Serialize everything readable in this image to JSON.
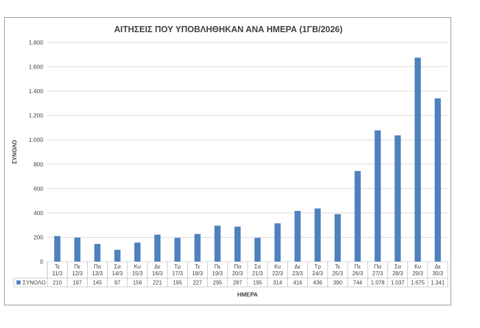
{
  "chart_data": {
    "type": "bar",
    "title": "ΑΙΤΗΣΕΙΣ ΠΟΥ ΥΠΟΒΛΗΘΗΚΑΝ ΑΝΑ ΗΜΕΡΑ (1ΓΒ/2026)",
    "xlabel": "ΗΜΕΡΑ",
    "ylabel": "ΣΥΝΟΛΟ",
    "ylim": [
      0,
      1800
    ],
    "y_ticks": [
      0,
      200,
      400,
      600,
      800,
      1000,
      1200,
      1400,
      1600,
      1800
    ],
    "y_tick_labels": [
      "0",
      "200",
      "400",
      "600",
      "800",
      "1.000",
      "1.200",
      "1.400",
      "1.600",
      "1.800"
    ],
    "grid": true,
    "color": "#4f81bd",
    "categories": [
      {
        "day": "Τε",
        "date": "11/3"
      },
      {
        "day": "Πε",
        "date": "12/3"
      },
      {
        "day": "Πα",
        "date": "13/3"
      },
      {
        "day": "Σα",
        "date": "14/3"
      },
      {
        "day": "Κυ",
        "date": "15/3"
      },
      {
        "day": "Δε",
        "date": "16/3"
      },
      {
        "day": "Τρ",
        "date": "17/3"
      },
      {
        "day": "Τε",
        "date": "18/3"
      },
      {
        "day": "Πε",
        "date": "19/3"
      },
      {
        "day": "Πα",
        "date": "20/3"
      },
      {
        "day": "Σα",
        "date": "21/3"
      },
      {
        "day": "Κυ",
        "date": "22/3"
      },
      {
        "day": "Δε",
        "date": "23/3"
      },
      {
        "day": "Τρ",
        "date": "24/3"
      },
      {
        "day": "Τε",
        "date": "25/3"
      },
      {
        "day": "Πε",
        "date": "26/3"
      },
      {
        "day": "Πα",
        "date": "27/3"
      },
      {
        "day": "Σα",
        "date": "28/3"
      },
      {
        "day": "Κυ",
        "date": "29/3"
      },
      {
        "day": "Δε",
        "date": "30/3"
      }
    ],
    "series": [
      {
        "name": "ΣΥΝΟΛΟ",
        "values": [
          210,
          197,
          145,
          97,
          156,
          221,
          195,
          227,
          295,
          287,
          195,
          314,
          416,
          436,
          390,
          744,
          1078,
          1037,
          1675,
          1341
        ],
        "value_labels": [
          "210",
          "197",
          "145",
          "97",
          "156",
          "221",
          "195",
          "227",
          "295",
          "287",
          "195",
          "314",
          "416",
          "436",
          "390",
          "744",
          "1.078",
          "1.037",
          "1.675",
          "1.341"
        ]
      }
    ]
  }
}
